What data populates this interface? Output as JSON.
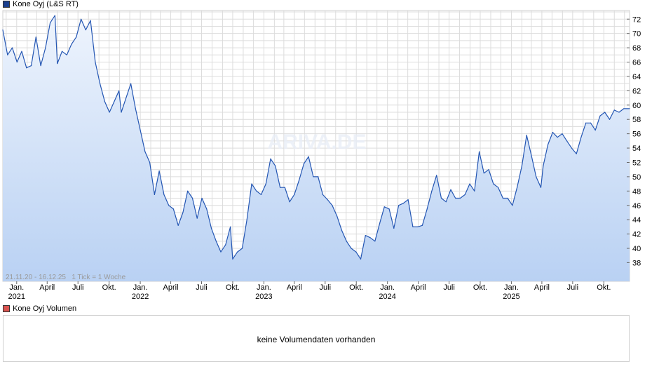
{
  "legend": {
    "price_label": "Kone Oyj (L&S RT)",
    "volume_label": "Kone Oyj Volumen"
  },
  "range_info": "21.11.20 - 16.12.25   1 Tick = 1 Woche",
  "watermark": "ARIVA.DE",
  "volume_panel": {
    "message": "keine Volumendaten vorhanden"
  },
  "colors": {
    "line": "#2456b3",
    "fill_top": "#eef4fd",
    "fill_bottom": "#b9d1f3",
    "grid": "#dcdcdc"
  },
  "chart_data": {
    "type": "area",
    "title": "Kone Oyj (L&S RT)",
    "grid": true,
    "x_range": [
      "2020-11-21",
      "2025-12-16"
    ],
    "ylim": [
      35.4,
      73.2
    ],
    "y_ticks": [
      38,
      40,
      42,
      44,
      46,
      48,
      50,
      52,
      54,
      56,
      58,
      60,
      62,
      64,
      66,
      68,
      70,
      72
    ],
    "x_tick_labels": [
      {
        "date": "2021-01-01",
        "label": "Jan.",
        "year": "2021"
      },
      {
        "date": "2021-04-01",
        "label": "April",
        "year": ""
      },
      {
        "date": "2021-07-01",
        "label": "Juli",
        "year": ""
      },
      {
        "date": "2021-10-01",
        "label": "Okt.",
        "year": ""
      },
      {
        "date": "2022-01-01",
        "label": "Jan.",
        "year": "2022"
      },
      {
        "date": "2022-04-01",
        "label": "April",
        "year": ""
      },
      {
        "date": "2022-07-01",
        "label": "Juli",
        "year": ""
      },
      {
        "date": "2022-10-01",
        "label": "Okt.",
        "year": ""
      },
      {
        "date": "2023-01-01",
        "label": "Jan.",
        "year": "2023"
      },
      {
        "date": "2023-04-01",
        "label": "April",
        "year": ""
      },
      {
        "date": "2023-07-01",
        "label": "Juli",
        "year": ""
      },
      {
        "date": "2023-10-01",
        "label": "Okt.",
        "year": ""
      },
      {
        "date": "2024-01-01",
        "label": "Jan.",
        "year": "2024"
      },
      {
        "date": "2024-04-01",
        "label": "April",
        "year": ""
      },
      {
        "date": "2024-07-01",
        "label": "Juli",
        "year": ""
      },
      {
        "date": "2024-10-01",
        "label": "Okt.",
        "year": ""
      },
      {
        "date": "2025-01-01",
        "label": "Jan.",
        "year": "2025"
      },
      {
        "date": "2025-04-01",
        "label": "April",
        "year": ""
      },
      {
        "date": "2025-07-01",
        "label": "Juli",
        "year": ""
      },
      {
        "date": "2025-10-01",
        "label": "Okt.",
        "year": ""
      }
    ],
    "series": [
      {
        "name": "Kone Oyj (L&S RT)",
        "points": [
          [
            "2020-11-21",
            70.5
          ],
          [
            "2020-12-05",
            67.0
          ],
          [
            "2020-12-19",
            68.0
          ],
          [
            "2021-01-02",
            66.0
          ],
          [
            "2021-01-16",
            67.5
          ],
          [
            "2021-01-30",
            65.2
          ],
          [
            "2021-02-13",
            65.5
          ],
          [
            "2021-02-27",
            69.5
          ],
          [
            "2021-03-13",
            65.5
          ],
          [
            "2021-03-27",
            68.0
          ],
          [
            "2021-04-10",
            71.5
          ],
          [
            "2021-04-24",
            72.5
          ],
          [
            "2021-05-01",
            65.8
          ],
          [
            "2021-05-15",
            67.5
          ],
          [
            "2021-05-29",
            67.0
          ],
          [
            "2021-06-12",
            68.5
          ],
          [
            "2021-06-26",
            69.5
          ],
          [
            "2021-07-10",
            72.0
          ],
          [
            "2021-07-24",
            70.5
          ],
          [
            "2021-08-07",
            71.8
          ],
          [
            "2021-08-21",
            66.0
          ],
          [
            "2021-09-04",
            63.0
          ],
          [
            "2021-09-18",
            60.5
          ],
          [
            "2021-10-02",
            59.0
          ],
          [
            "2021-10-16",
            60.5
          ],
          [
            "2021-10-30",
            62.0
          ],
          [
            "2021-11-06",
            59.0
          ],
          [
            "2021-11-20",
            61.0
          ],
          [
            "2021-12-04",
            63.0
          ],
          [
            "2021-12-18",
            59.5
          ],
          [
            "2022-01-01",
            56.5
          ],
          [
            "2022-01-15",
            53.5
          ],
          [
            "2022-01-29",
            52.0
          ],
          [
            "2022-02-12",
            47.5
          ],
          [
            "2022-02-26",
            50.8
          ],
          [
            "2022-03-12",
            47.5
          ],
          [
            "2022-03-26",
            46.0
          ],
          [
            "2022-04-09",
            45.5
          ],
          [
            "2022-04-23",
            43.2
          ],
          [
            "2022-05-07",
            45.0
          ],
          [
            "2022-05-21",
            48.0
          ],
          [
            "2022-06-04",
            47.0
          ],
          [
            "2022-06-18",
            44.2
          ],
          [
            "2022-07-02",
            47.0
          ],
          [
            "2022-07-16",
            45.5
          ],
          [
            "2022-07-30",
            42.8
          ],
          [
            "2022-08-13",
            41.0
          ],
          [
            "2022-08-27",
            39.5
          ],
          [
            "2022-09-10",
            40.5
          ],
          [
            "2022-09-24",
            43.0
          ],
          [
            "2022-10-01",
            38.5
          ],
          [
            "2022-10-15",
            39.5
          ],
          [
            "2022-10-29",
            40.0
          ],
          [
            "2022-11-12",
            44.0
          ],
          [
            "2022-11-26",
            49.0
          ],
          [
            "2022-12-10",
            48.0
          ],
          [
            "2022-12-24",
            47.5
          ],
          [
            "2023-01-07",
            49.0
          ],
          [
            "2023-01-21",
            52.5
          ],
          [
            "2023-02-04",
            51.5
          ],
          [
            "2023-02-18",
            48.5
          ],
          [
            "2023-03-04",
            48.5
          ],
          [
            "2023-03-18",
            46.5
          ],
          [
            "2023-04-01",
            47.5
          ],
          [
            "2023-04-15",
            49.5
          ],
          [
            "2023-04-29",
            51.8
          ],
          [
            "2023-05-13",
            52.8
          ],
          [
            "2023-05-27",
            50.0
          ],
          [
            "2023-06-10",
            50.0
          ],
          [
            "2023-06-24",
            47.5
          ],
          [
            "2023-07-08",
            46.8
          ],
          [
            "2023-07-22",
            46.0
          ],
          [
            "2023-08-05",
            44.5
          ],
          [
            "2023-08-19",
            42.5
          ],
          [
            "2023-09-02",
            41.0
          ],
          [
            "2023-09-16",
            40.0
          ],
          [
            "2023-09-30",
            39.5
          ],
          [
            "2023-10-14",
            38.5
          ],
          [
            "2023-10-28",
            41.8
          ],
          [
            "2023-11-11",
            41.5
          ],
          [
            "2023-11-25",
            41.0
          ],
          [
            "2023-12-09",
            43.5
          ],
          [
            "2023-12-23",
            45.8
          ],
          [
            "2024-01-06",
            45.5
          ],
          [
            "2024-01-20",
            42.8
          ],
          [
            "2024-02-03",
            46.0
          ],
          [
            "2024-02-17",
            46.3
          ],
          [
            "2024-03-02",
            46.8
          ],
          [
            "2024-03-16",
            43.0
          ],
          [
            "2024-03-30",
            43.0
          ],
          [
            "2024-04-13",
            43.2
          ],
          [
            "2024-04-27",
            45.5
          ],
          [
            "2024-05-11",
            48.0
          ],
          [
            "2024-05-25",
            50.2
          ],
          [
            "2024-06-08",
            47.0
          ],
          [
            "2024-06-22",
            46.5
          ],
          [
            "2024-07-06",
            48.2
          ],
          [
            "2024-07-20",
            47.0
          ],
          [
            "2024-08-03",
            47.0
          ],
          [
            "2024-08-17",
            47.5
          ],
          [
            "2024-08-31",
            49.0
          ],
          [
            "2024-09-14",
            48.0
          ],
          [
            "2024-09-28",
            53.5
          ],
          [
            "2024-10-12",
            50.5
          ],
          [
            "2024-10-26",
            51.0
          ],
          [
            "2024-11-09",
            49.0
          ],
          [
            "2024-11-23",
            48.5
          ],
          [
            "2024-12-07",
            47.0
          ],
          [
            "2024-12-21",
            47.0
          ],
          [
            "2025-01-04",
            46.0
          ],
          [
            "2025-01-18",
            48.5
          ],
          [
            "2025-02-01",
            51.5
          ],
          [
            "2025-02-15",
            55.8
          ],
          [
            "2025-03-01",
            53.0
          ],
          [
            "2025-03-15",
            50.0
          ],
          [
            "2025-03-29",
            48.5
          ],
          [
            "2025-04-05",
            51.5
          ],
          [
            "2025-04-19",
            54.5
          ],
          [
            "2025-05-03",
            56.2
          ],
          [
            "2025-05-17",
            55.5
          ],
          [
            "2025-05-31",
            56.0
          ],
          [
            "2025-06-14",
            55.0
          ],
          [
            "2025-06-28",
            54.0
          ],
          [
            "2025-07-12",
            53.2
          ],
          [
            "2025-07-26",
            55.5
          ],
          [
            "2025-08-09",
            57.5
          ],
          [
            "2025-08-23",
            57.5
          ],
          [
            "2025-09-06",
            56.5
          ],
          [
            "2025-09-20",
            58.5
          ],
          [
            "2025-10-04",
            59.0
          ],
          [
            "2025-10-18",
            58.0
          ],
          [
            "2025-11-01",
            59.3
          ],
          [
            "2025-11-15",
            59.0
          ],
          [
            "2025-11-29",
            59.5
          ],
          [
            "2025-12-16",
            59.5
          ]
        ]
      }
    ]
  }
}
